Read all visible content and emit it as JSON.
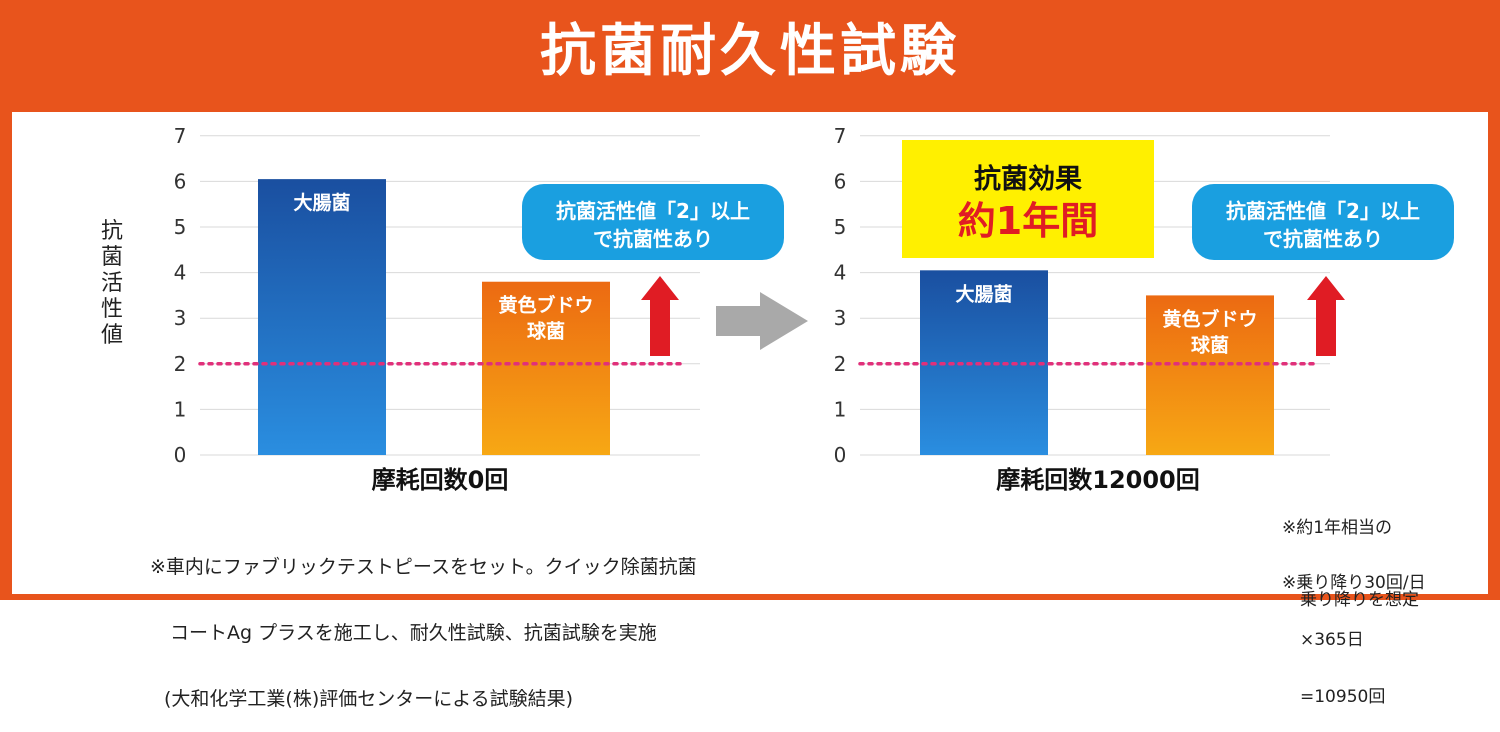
{
  "title": "抗菌耐久性試験",
  "colors": {
    "frame": "#e8541c",
    "ecoli_bar": "#1868c0",
    "staph_bar": "#f08a1a",
    "threshold_line": "#e0307a",
    "callout_bg": "#1a9fe0",
    "up_arrow": "#e01c24",
    "highlight_bg": "#fff000",
    "highlight_red": "#e01c24"
  },
  "callout_text": [
    "抗菌活性値「2」以上",
    "で抗菌性あり"
  ],
  "highlight": {
    "line1": "抗菌効果",
    "line2": "約1年間"
  },
  "chart_data": [
    {
      "type": "bar",
      "ylabel": "抗菌活性値",
      "xlabel": "摩耗回数0回",
      "categories": [
        "大腸菌",
        "黄色ブドウ球菌"
      ],
      "category_labels": [
        [
          "大腸菌"
        ],
        [
          "黄色ブドウ",
          "球菌"
        ]
      ],
      "values": [
        6.05,
        3.8
      ],
      "ylim": [
        0,
        7
      ],
      "yticks": [
        0,
        1,
        2,
        3,
        4,
        5,
        6,
        7
      ],
      "threshold": 2,
      "grid": true
    },
    {
      "type": "bar",
      "ylabel": "",
      "xlabel": "摩耗回数12000回",
      "categories": [
        "大腸菌",
        "黄色ブドウ球菌"
      ],
      "category_labels": [
        [
          "大腸菌"
        ],
        [
          "黄色ブドウ",
          "球菌"
        ]
      ],
      "values": [
        4.05,
        3.5
      ],
      "ylim": [
        0,
        7
      ],
      "yticks": [
        0,
        1,
        2,
        3,
        4,
        5,
        6,
        7
      ],
      "threshold": 2,
      "grid": true
    }
  ],
  "notes": {
    "method": [
      "※車内にファブリックテストピースをセット。クイック除菌抗菌",
      "コートAg プラスを施工し、耐久性試験、抗菌試験を実施",
      "(大和化学工業(株)評価センターによる試験結果)"
    ],
    "equivalent": [
      "※約1年相当の",
      "乗り降りを想定"
    ],
    "calculation": [
      "※乗り降り30回/日",
      "×365日",
      "=10950回"
    ]
  }
}
